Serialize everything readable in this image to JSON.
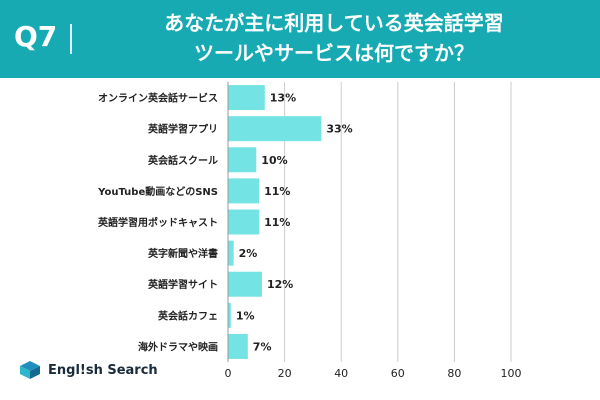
{
  "header": {
    "question": "Q7",
    "title_line1": "あなたが主に利用している英会話学習",
    "title_line2": "ツールやサービスは何ですか？"
  },
  "logo": {
    "text": "Engl!sh Search",
    "icon": "book-icon"
  },
  "colors": {
    "header_bg": "#18aab3",
    "bar": "#74e3e3",
    "text": "#222222",
    "grid": "#cccccc"
  },
  "chart_data": {
    "type": "bar",
    "orientation": "horizontal",
    "categories": [
      "オンライン英会話サービス",
      "英語学習アプリ",
      "英会話スクール",
      "YouTube動画などのSNS",
      "英語学習用ポッドキャスト",
      "英字新聞や洋書",
      "英語学習サイト",
      "英会話カフェ",
      "海外ドラマや映画"
    ],
    "values": [
      13,
      33,
      10,
      11,
      11,
      2,
      12,
      1,
      7
    ],
    "value_labels": [
      "13%",
      "33%",
      "10%",
      "11%",
      "11%",
      "2%",
      "12%",
      "1%",
      "7%"
    ],
    "xlim": [
      0,
      100
    ],
    "xticks": [
      "0",
      "20",
      "40",
      "60",
      "80",
      "100"
    ],
    "title": "",
    "xlabel": "",
    "ylabel": ""
  }
}
